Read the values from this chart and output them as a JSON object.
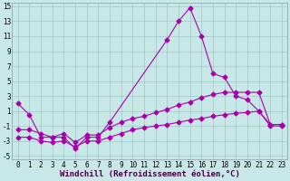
{
  "bg_color": "#c8e8e8",
  "line1_x": [
    0,
    1,
    2,
    3,
    4,
    5,
    6,
    7,
    8,
    13,
    14,
    15,
    16,
    17,
    18,
    19,
    20,
    21,
    22,
    23
  ],
  "line1_y": [
    2.0,
    0.5,
    -2.5,
    -2.5,
    -2.5,
    -4.0,
    -2.5,
    -2.5,
    -0.5,
    10.5,
    13.0,
    14.8,
    11.0,
    6.0,
    5.5,
    3.0,
    2.5,
    1.0,
    -1.0,
    -1.0
  ],
  "line2_x": [
    0,
    1,
    2,
    3,
    4,
    5,
    6,
    7,
    8,
    9,
    10,
    11,
    12,
    13,
    14,
    15,
    16,
    17,
    18,
    19,
    20,
    21,
    22,
    23
  ],
  "line2_y": [
    -2.5,
    -2.5,
    -3.0,
    -3.2,
    -3.0,
    -3.8,
    -3.0,
    -3.0,
    -2.5,
    -2.0,
    -1.5,
    -1.2,
    -1.0,
    -0.8,
    -0.5,
    -0.2,
    0.0,
    0.3,
    0.5,
    0.7,
    0.8,
    1.0,
    -0.8,
    -0.8
  ],
  "line3_x": [
    0,
    1,
    2,
    3,
    4,
    5,
    6,
    7,
    8,
    9,
    10,
    11,
    12,
    13,
    14,
    15,
    16,
    17,
    18,
    19,
    20,
    21,
    22,
    23
  ],
  "line3_y": [
    -1.5,
    -1.5,
    -2.0,
    -2.5,
    -2.0,
    -3.2,
    -2.2,
    -2.2,
    -1.2,
    -0.5,
    0.0,
    0.3,
    0.8,
    1.2,
    1.8,
    2.2,
    2.8,
    3.2,
    3.5,
    3.5,
    3.5,
    3.5,
    -0.8,
    -0.8
  ],
  "grid_color": "#a0c8c8",
  "line_color": "#aa00aa",
  "marker": "D",
  "markersize": 2.5,
  "xlabel": "Windchill (Refroidissement éolien,°C)",
  "xlim": [
    -0.5,
    23.5
  ],
  "ylim": [
    -5.5,
    15.5
  ],
  "yticks": [
    -5,
    -3,
    -1,
    1,
    3,
    5,
    7,
    9,
    11,
    13,
    15
  ],
  "xticks": [
    0,
    1,
    2,
    3,
    4,
    5,
    6,
    7,
    8,
    9,
    10,
    11,
    12,
    13,
    14,
    15,
    16,
    17,
    18,
    19,
    20,
    21,
    22,
    23
  ],
  "tick_fontsize": 5.5,
  "xlabel_fontsize": 6.5,
  "linewidth": 0.8
}
